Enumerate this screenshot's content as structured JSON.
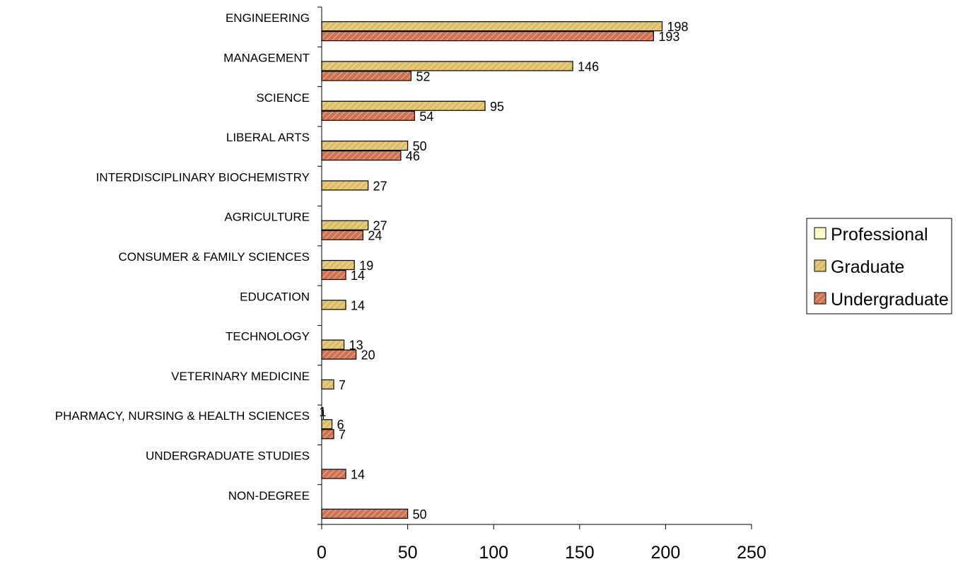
{
  "chart_data": {
    "type": "bar",
    "orientation": "horizontal",
    "categories": [
      "ENGINEERING",
      "MANAGEMENT",
      "SCIENCE",
      "LIBERAL ARTS",
      "INTERDISCIPLINARY BIOCHEMISTRY",
      "AGRICULTURE",
      "CONSUMER & FAMILY SCIENCES",
      "EDUCATION",
      "TECHNOLOGY",
      "VETERINARY MEDICINE",
      "PHARMACY, NURSING & HEALTH SCIENCES",
      "UNDERGRADUATE STUDIES",
      "NON-DEGREE"
    ],
    "series": [
      {
        "name": "Professional",
        "color": "#ffffcc",
        "values": [
          null,
          null,
          null,
          null,
          null,
          null,
          null,
          null,
          null,
          null,
          1,
          null,
          null
        ]
      },
      {
        "name": "Graduate",
        "color": "#d9b860",
        "values": [
          198,
          146,
          95,
          50,
          27,
          27,
          19,
          14,
          13,
          7,
          6,
          null,
          null
        ]
      },
      {
        "name": "Undergraduate",
        "color": "#cc7050",
        "values": [
          193,
          52,
          54,
          46,
          null,
          24,
          14,
          null,
          20,
          null,
          7,
          14,
          50
        ]
      }
    ],
    "xlim": [
      0,
      250
    ],
    "x_ticks": [
      "0",
      "50",
      "100",
      "150",
      "200",
      "250"
    ],
    "title": "",
    "xlabel": "",
    "ylabel": "",
    "grid": false,
    "legend_position": "right"
  }
}
